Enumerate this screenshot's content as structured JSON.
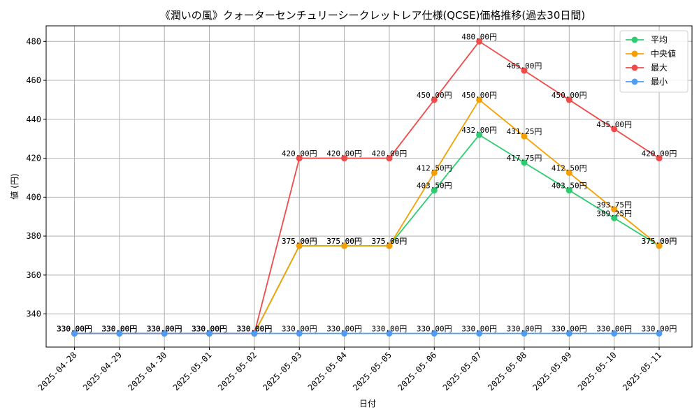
{
  "chart_data": {
    "type": "line",
    "title": "《潤いの風》クォーターセンチュリーシークレットレア仕様(QCSE)価格推移(過去30日間)",
    "xlabel": "日付",
    "ylabel": "値 (円)",
    "ylim": [
      323,
      488
    ],
    "yticks": [
      340,
      360,
      380,
      400,
      420,
      440,
      460,
      480
    ],
    "grid": true,
    "legend_position": "top-right",
    "categories": [
      "2025-04-28",
      "2025-04-29",
      "2025-04-30",
      "2025-05-01",
      "2025-05-02",
      "2025-05-03",
      "2025-05-04",
      "2025-05-05",
      "2025-05-06",
      "2025-05-07",
      "2025-05-08",
      "2025-05-09",
      "2025-05-10",
      "2025-05-11"
    ],
    "series": [
      {
        "name": "平均",
        "color": "#2ecc71",
        "values": [
          330,
          330,
          330,
          330,
          330,
          375,
          375,
          375,
          403.5,
          432,
          417.75,
          403.5,
          389.25,
          375
        ],
        "labels": [
          "330.00円",
          "330.00円",
          "330.00円",
          "330.00円",
          "330.00円",
          "375.00円",
          "375.00円",
          "375.00円",
          "403.50円",
          "432.00円",
          "417.75円",
          "403.50円",
          "389.25円",
          "375.00円"
        ]
      },
      {
        "name": "中央値",
        "color": "#f5a000",
        "values": [
          330,
          330,
          330,
          330,
          330,
          375,
          375,
          375,
          412.5,
          450,
          431.25,
          412.5,
          393.75,
          375
        ],
        "labels": [
          "330.00円",
          "330.00円",
          "330.00円",
          "330.00円",
          "330.00円",
          "375.00円",
          "375.00円",
          "375.00円",
          "412.50円",
          "450.00円",
          "431.25円",
          "412.50円",
          "393.75円",
          "375.00円"
        ]
      },
      {
        "name": "最大",
        "color": "#ef4b4b",
        "values": [
          330,
          330,
          330,
          330,
          330,
          420,
          420,
          420,
          450,
          480,
          465,
          450,
          435,
          420
        ],
        "labels": [
          "330.00円",
          "330.00円",
          "330.00円",
          "330.00円",
          "330.00円",
          "420.00円",
          "420.00円",
          "420.00円",
          "450.00円",
          "480.00円",
          "465.00円",
          "450.00円",
          "435.00円",
          "420.00円"
        ]
      },
      {
        "name": "最小",
        "color": "#4d9cf5",
        "values": [
          330,
          330,
          330,
          330,
          330,
          330,
          330,
          330,
          330,
          330,
          330,
          330,
          330,
          330
        ],
        "labels": [
          "330.00円",
          "330.00円",
          "330.00円",
          "330.00円",
          "330.00円",
          "330.00円",
          "330.00円",
          "330.00円",
          "330.00円",
          "330.00円",
          "330.00円",
          "330.00円",
          "330.00円",
          "330.00円"
        ]
      }
    ]
  }
}
